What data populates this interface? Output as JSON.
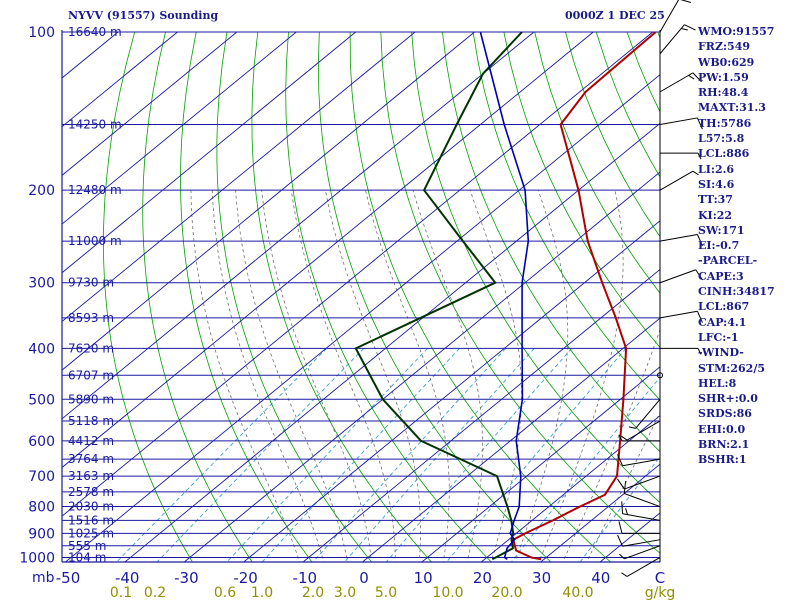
{
  "header": {
    "station": "NYVV (91557) Sounding",
    "time": "0000Z  1 DEC 25"
  },
  "indices": [
    "WMO:91557",
    "FRZ:549",
    "WB0:629",
    "PW:1.59",
    "RH:48.4",
    "MAXT:31.3",
    "TH:5786",
    "L57:5.8",
    "LCL:886",
    "LI:2.6",
    "SI:4.6",
    "TT:37",
    "KI:22",
    "SW:171",
    "EI:-0.7",
    "-PARCEL-",
    "CAPE:3",
    "CINH:34817",
    "LCL:867",
    "CAP:4.1",
    "LFC:-1",
    "-WIND-",
    "STM:262/5",
    "HEL:8",
    "SHR+:0.0",
    "SRDS:86",
    "EHI:0.0",
    "BRN:2.1",
    "BSHR:1"
  ],
  "colors": {
    "isobar": "#1a1aa0",
    "isotherm": "#1a1aa0",
    "dry_adiabat": "#00a000",
    "moist_adiabat": "#707070",
    "mixing_ratio": "#3aa0d0",
    "temperature": "#b00000",
    "dewpoint": "#003300",
    "wetbulb": "#0000b0",
    "label": "#1a1aa0",
    "mixing_label": "#909000"
  },
  "chart_data": {
    "type": "line",
    "title": "NYVV (91557) Sounding",
    "xlabel": "C",
    "ylabel": "mb",
    "xlim": [
      -50,
      50
    ],
    "ylim": [
      1020,
      100
    ],
    "x_ticks": [
      "-50",
      "-40",
      "-30",
      "-20",
      "-10",
      "0",
      "10",
      "20",
      "30",
      "40",
      "C"
    ],
    "pressure_levels": [
      {
        "p": 100,
        "label": "100",
        "height": "16640 m"
      },
      {
        "p": 150,
        "label": "",
        "height": "14250 m"
      },
      {
        "p": 200,
        "label": "200",
        "height": "12480 m"
      },
      {
        "p": 250,
        "label": "",
        "height": "11000 m"
      },
      {
        "p": 300,
        "label": "300",
        "height": "9730 m"
      },
      {
        "p": 350,
        "label": "",
        "height": "8593 m"
      },
      {
        "p": 400,
        "label": "400",
        "height": "7620 m"
      },
      {
        "p": 450,
        "label": "",
        "height": "6707 m"
      },
      {
        "p": 500,
        "label": "500",
        "height": "5890 m"
      },
      {
        "p": 550,
        "label": "",
        "height": "5118 m"
      },
      {
        "p": 600,
        "label": "600",
        "height": "4412 m"
      },
      {
        "p": 650,
        "label": "",
        "height": "3764 m"
      },
      {
        "p": 700,
        "label": "700",
        "height": "3163 m"
      },
      {
        "p": 750,
        "label": "",
        "height": "2578 m"
      },
      {
        "p": 800,
        "label": "800",
        "height": "2030 m"
      },
      {
        "p": 850,
        "label": "",
        "height": "1516 m"
      },
      {
        "p": 900,
        "label": "900",
        "height": "1025 m"
      },
      {
        "p": 950,
        "label": "",
        "height": "555 m"
      },
      {
        "p": 1000,
        "label": "1000",
        "height": "104 m"
      }
    ],
    "mixing_ratio_labels": [
      {
        "w": 0.1,
        "label": "0.1"
      },
      {
        "w": 0.2,
        "label": "0.2"
      },
      {
        "w": 0.6,
        "label": "0.6"
      },
      {
        "w": 1.0,
        "label": "1.0"
      },
      {
        "w": 2.0,
        "label": "2.0"
      },
      {
        "w": 3.0,
        "label": "3.0"
      },
      {
        "w": 5.0,
        "label": "5.0"
      },
      {
        "w": 10.0,
        "label": "10.0"
      },
      {
        "w": 20.0,
        "label": "20.0"
      },
      {
        "w": 40.0,
        "label": "40.0"
      }
    ],
    "mixing_unit": "g/kg",
    "series": [
      {
        "key": "temperature",
        "points": [
          [
            1008,
            29.5
          ],
          [
            1000,
            27.5
          ],
          [
            970,
            23.5
          ],
          [
            925,
            20.8
          ],
          [
            900,
            21.5
          ],
          [
            850,
            23.5
          ],
          [
            800,
            25.2
          ],
          [
            760,
            27.0
          ],
          [
            700,
            25.2
          ],
          [
            600,
            18.5
          ],
          [
            500,
            10.5
          ],
          [
            400,
            0.5
          ],
          [
            350,
            -7.5
          ],
          [
            300,
            -17.0
          ],
          [
            250,
            -28.0
          ],
          [
            200,
            -40.0
          ],
          [
            150,
            -56.5
          ],
          [
            130,
            -59.0
          ],
          [
            100,
            -59.5
          ]
        ]
      },
      {
        "key": "dewpoint",
        "points": [
          [
            1008,
            21.3
          ],
          [
            1000,
            21.5
          ],
          [
            960,
            22.5
          ],
          [
            925,
            20.5
          ],
          [
            900,
            19.5
          ],
          [
            850,
            16.5
          ],
          [
            800,
            13.0
          ],
          [
            700,
            5.0
          ],
          [
            600,
            -15.0
          ],
          [
            500,
            -30.0
          ],
          [
            400,
            -45.0
          ],
          [
            300,
            -35.0
          ],
          [
            250,
            -49.0
          ],
          [
            200,
            -66.0
          ],
          [
            150,
            -74.0
          ],
          [
            120,
            -80.0
          ],
          [
            100,
            -82.0
          ]
        ]
      },
      {
        "key": "wetbulb",
        "points": [
          [
            1008,
            23.8
          ],
          [
            1000,
            23.0
          ],
          [
            960,
            21.5
          ],
          [
            925,
            21.0
          ],
          [
            900,
            19.0
          ],
          [
            850,
            17.0
          ],
          [
            800,
            15.0
          ],
          [
            700,
            9.0
          ],
          [
            600,
            1.0
          ],
          [
            500,
            -6.5
          ],
          [
            400,
            -17.0
          ],
          [
            300,
            -30.5
          ],
          [
            250,
            -38.0
          ],
          [
            200,
            -49.0
          ],
          [
            150,
            -66.0
          ],
          [
            100,
            -89.0
          ]
        ]
      }
    ],
    "wind_barbs": [
      {
        "p": 1000,
        "dir": 240,
        "spd": 5
      },
      {
        "p": 950,
        "dir": 250,
        "spd": 5
      },
      {
        "p": 925,
        "dir": 260,
        "spd": 10
      },
      {
        "p": 900,
        "dir": 270,
        "spd": 10
      },
      {
        "p": 850,
        "dir": 280,
        "spd": 15
      },
      {
        "p": 800,
        "dir": 290,
        "spd": 10
      },
      {
        "p": 700,
        "dir": 250,
        "spd": 10
      },
      {
        "p": 650,
        "dir": 260,
        "spd": 10
      },
      {
        "p": 600,
        "dir": 270,
        "spd": 5
      },
      {
        "p": 550,
        "dir": 240,
        "spd": 5
      },
      {
        "p": 500,
        "dir": 220,
        "spd": 5
      },
      {
        "p": 450,
        "dir": 0,
        "spd": 0
      },
      {
        "p": 400,
        "dir": 90,
        "spd": 5
      },
      {
        "p": 350,
        "dir": 80,
        "spd": 10
      },
      {
        "p": 300,
        "dir": 70,
        "spd": 10
      },
      {
        "p": 250,
        "dir": 80,
        "spd": 10
      },
      {
        "p": 200,
        "dir": 60,
        "spd": 5
      },
      {
        "p": 170,
        "dir": 90,
        "spd": 5
      },
      {
        "p": 150,
        "dir": 80,
        "spd": 10
      },
      {
        "p": 130,
        "dir": 60,
        "spd": 15
      },
      {
        "p": 110,
        "dir": 40,
        "spd": 15
      },
      {
        "p": 100,
        "dir": 30,
        "spd": 10
      }
    ]
  }
}
